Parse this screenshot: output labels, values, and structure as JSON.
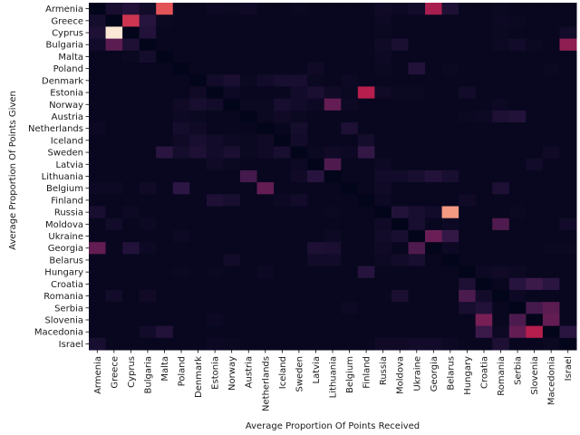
{
  "chart_data": {
    "type": "heatmap",
    "xlabel": "Average Proportion Of Points Received",
    "ylabel": "Average Proportion Of Points Given",
    "colorscale": [
      "#03051a",
      "#2e1745",
      "#701f57",
      "#be1e4c",
      "#f1695d",
      "#f7c8a6",
      "#faebdd"
    ],
    "scale_max": 1.0,
    "countries": [
      "Armenia",
      "Greece",
      "Cyprus",
      "Bulgaria",
      "Malta",
      "Poland",
      "Denmark",
      "Estonia",
      "Norway",
      "Austria",
      "Netherlands",
      "Iceland",
      "Sweden",
      "Latvia",
      "Lithuania",
      "Belgium",
      "Finland",
      "Russia",
      "Moldova",
      "Ukraine",
      "Georgia",
      "Belarus",
      "Hungary",
      "Croatia",
      "Romania",
      "Serbia",
      "Slovenia",
      "Macedonia",
      "Israel"
    ],
    "values": [
      [
        0.0,
        0.08,
        0.12,
        0.06,
        0.62,
        0.02,
        0.02,
        0.04,
        0.03,
        0.05,
        0.02,
        0.02,
        0.03,
        0.02,
        0.02,
        0.02,
        0.02,
        0.05,
        0.04,
        0.06,
        0.45,
        0.1,
        0.02,
        0.02,
        0.03,
        0.02,
        0.02,
        0.02,
        0.02
      ],
      [
        0.07,
        0.0,
        0.55,
        0.14,
        0.03,
        0.02,
        0.02,
        0.02,
        0.02,
        0.02,
        0.02,
        0.02,
        0.02,
        0.02,
        0.02,
        0.02,
        0.02,
        0.04,
        0.02,
        0.02,
        0.02,
        0.02,
        0.02,
        0.02,
        0.04,
        0.03,
        0.02,
        0.02,
        0.02
      ],
      [
        0.1,
        0.98,
        0.0,
        0.12,
        0.02,
        0.02,
        0.02,
        0.02,
        0.02,
        0.02,
        0.02,
        0.02,
        0.02,
        0.02,
        0.02,
        0.02,
        0.02,
        0.03,
        0.02,
        0.02,
        0.02,
        0.02,
        0.02,
        0.02,
        0.03,
        0.02,
        0.02,
        0.02,
        0.06
      ],
      [
        0.06,
        0.28,
        0.1,
        0.0,
        0.02,
        0.02,
        0.02,
        0.02,
        0.02,
        0.02,
        0.02,
        0.02,
        0.02,
        0.02,
        0.02,
        0.02,
        0.02,
        0.05,
        0.09,
        0.02,
        0.02,
        0.02,
        0.02,
        0.02,
        0.04,
        0.06,
        0.03,
        0.02,
        0.4
      ],
      [
        0.02,
        0.02,
        0.03,
        0.07,
        0.0,
        0.02,
        0.02,
        0.02,
        0.02,
        0.02,
        0.02,
        0.02,
        0.02,
        0.02,
        0.02,
        0.02,
        0.02,
        0.04,
        0.02,
        0.02,
        0.02,
        0.02,
        0.02,
        0.02,
        0.02,
        0.02,
        0.02,
        0.02,
        0.02
      ],
      [
        0.02,
        0.02,
        0.02,
        0.02,
        0.02,
        0.0,
        0.02,
        0.02,
        0.02,
        0.02,
        0.02,
        0.02,
        0.02,
        0.05,
        0.02,
        0.02,
        0.02,
        0.03,
        0.02,
        0.12,
        0.02,
        0.03,
        0.02,
        0.02,
        0.02,
        0.02,
        0.02,
        0.03,
        0.02
      ],
      [
        0.02,
        0.02,
        0.02,
        0.02,
        0.02,
        0.02,
        0.0,
        0.06,
        0.09,
        0.03,
        0.06,
        0.08,
        0.08,
        0.03,
        0.02,
        0.04,
        0.02,
        0.02,
        0.02,
        0.02,
        0.02,
        0.02,
        0.02,
        0.02,
        0.02,
        0.02,
        0.02,
        0.02,
        0.02
      ],
      [
        0.02,
        0.02,
        0.02,
        0.02,
        0.02,
        0.02,
        0.05,
        0.0,
        0.04,
        0.02,
        0.02,
        0.02,
        0.06,
        0.09,
        0.05,
        0.03,
        0.48,
        0.05,
        0.03,
        0.03,
        0.02,
        0.02,
        0.06,
        0.02,
        0.02,
        0.02,
        0.02,
        0.02,
        0.02
      ],
      [
        0.02,
        0.02,
        0.02,
        0.02,
        0.02,
        0.05,
        0.08,
        0.06,
        0.0,
        0.03,
        0.03,
        0.08,
        0.06,
        0.04,
        0.3,
        0.04,
        0.02,
        0.02,
        0.02,
        0.02,
        0.02,
        0.02,
        0.02,
        0.02,
        0.04,
        0.02,
        0.02,
        0.02,
        0.02
      ],
      [
        0.02,
        0.02,
        0.02,
        0.02,
        0.02,
        0.04,
        0.03,
        0.02,
        0.02,
        0.0,
        0.03,
        0.05,
        0.03,
        0.02,
        0.02,
        0.02,
        0.02,
        0.02,
        0.02,
        0.02,
        0.02,
        0.02,
        0.03,
        0.04,
        0.1,
        0.12,
        0.02,
        0.02,
        0.02
      ],
      [
        0.04,
        0.02,
        0.02,
        0.02,
        0.02,
        0.07,
        0.05,
        0.02,
        0.02,
        0.02,
        0.0,
        0.02,
        0.07,
        0.02,
        0.02,
        0.1,
        0.02,
        0.02,
        0.02,
        0.02,
        0.02,
        0.02,
        0.02,
        0.02,
        0.02,
        0.02,
        0.02,
        0.02,
        0.02
      ],
      [
        0.02,
        0.02,
        0.02,
        0.02,
        0.02,
        0.05,
        0.08,
        0.06,
        0.04,
        0.03,
        0.05,
        0.0,
        0.06,
        0.02,
        0.02,
        0.02,
        0.07,
        0.02,
        0.02,
        0.02,
        0.02,
        0.02,
        0.02,
        0.02,
        0.02,
        0.02,
        0.02,
        0.02,
        0.02
      ],
      [
        0.02,
        0.02,
        0.02,
        0.02,
        0.15,
        0.07,
        0.1,
        0.06,
        0.09,
        0.03,
        0.05,
        0.08,
        0.0,
        0.03,
        0.05,
        0.04,
        0.18,
        0.02,
        0.02,
        0.02,
        0.02,
        0.02,
        0.02,
        0.02,
        0.02,
        0.02,
        0.02,
        0.05,
        0.02
      ],
      [
        0.02,
        0.02,
        0.02,
        0.02,
        0.02,
        0.02,
        0.02,
        0.05,
        0.03,
        0.02,
        0.02,
        0.02,
        0.04,
        0.0,
        0.25,
        0.02,
        0.02,
        0.04,
        0.02,
        0.02,
        0.02,
        0.02,
        0.02,
        0.02,
        0.02,
        0.02,
        0.06,
        0.02,
        0.02
      ],
      [
        0.02,
        0.02,
        0.02,
        0.02,
        0.02,
        0.02,
        0.02,
        0.02,
        0.02,
        0.22,
        0.02,
        0.02,
        0.05,
        0.14,
        0.0,
        0.02,
        0.02,
        0.06,
        0.06,
        0.08,
        0.12,
        0.08,
        0.02,
        0.02,
        0.02,
        0.02,
        0.02,
        0.02,
        0.02
      ],
      [
        0.04,
        0.04,
        0.02,
        0.05,
        0.02,
        0.16,
        0.02,
        0.02,
        0.02,
        0.02,
        0.3,
        0.02,
        0.02,
        0.02,
        0.02,
        0.0,
        0.02,
        0.05,
        0.02,
        0.02,
        0.02,
        0.02,
        0.02,
        0.02,
        0.1,
        0.02,
        0.02,
        0.02,
        0.02
      ],
      [
        0.02,
        0.02,
        0.02,
        0.02,
        0.02,
        0.02,
        0.02,
        0.1,
        0.08,
        0.02,
        0.02,
        0.04,
        0.06,
        0.02,
        0.02,
        0.02,
        0.0,
        0.04,
        0.02,
        0.02,
        0.02,
        0.02,
        0.05,
        0.02,
        0.02,
        0.02,
        0.02,
        0.02,
        0.02
      ],
      [
        0.08,
        0.02,
        0.04,
        0.02,
        0.02,
        0.02,
        0.02,
        0.02,
        0.02,
        0.02,
        0.02,
        0.02,
        0.02,
        0.02,
        0.03,
        0.02,
        0.02,
        0.0,
        0.12,
        0.08,
        0.06,
        0.75,
        0.02,
        0.02,
        0.02,
        0.03,
        0.02,
        0.02,
        0.02
      ],
      [
        0.02,
        0.06,
        0.02,
        0.04,
        0.02,
        0.02,
        0.02,
        0.02,
        0.02,
        0.02,
        0.02,
        0.02,
        0.02,
        0.02,
        0.02,
        0.02,
        0.02,
        0.05,
        0.0,
        0.08,
        0.02,
        0.04,
        0.02,
        0.02,
        0.25,
        0.02,
        0.02,
        0.02,
        0.06
      ],
      [
        0.02,
        0.02,
        0.02,
        0.02,
        0.02,
        0.04,
        0.02,
        0.02,
        0.02,
        0.02,
        0.02,
        0.02,
        0.02,
        0.02,
        0.04,
        0.02,
        0.02,
        0.06,
        0.08,
        0.0,
        0.32,
        0.18,
        0.02,
        0.02,
        0.02,
        0.02,
        0.02,
        0.02,
        0.02
      ],
      [
        0.3,
        0.02,
        0.12,
        0.04,
        0.02,
        0.02,
        0.02,
        0.02,
        0.02,
        0.02,
        0.02,
        0.02,
        0.02,
        0.1,
        0.09,
        0.02,
        0.02,
        0.05,
        0.02,
        0.25,
        0.0,
        0.04,
        0.02,
        0.02,
        0.02,
        0.02,
        0.02,
        0.03,
        0.03
      ],
      [
        0.02,
        0.02,
        0.02,
        0.02,
        0.02,
        0.02,
        0.02,
        0.02,
        0.06,
        0.02,
        0.02,
        0.02,
        0.02,
        0.06,
        0.06,
        0.02,
        0.02,
        0.04,
        0.06,
        0.08,
        0.02,
        0.0,
        0.02,
        0.02,
        0.02,
        0.02,
        0.02,
        0.02,
        0.02
      ],
      [
        0.02,
        0.02,
        0.02,
        0.02,
        0.02,
        0.03,
        0.02,
        0.03,
        0.02,
        0.02,
        0.04,
        0.02,
        0.02,
        0.02,
        0.02,
        0.02,
        0.14,
        0.02,
        0.02,
        0.02,
        0.02,
        0.02,
        0.0,
        0.04,
        0.05,
        0.04,
        0.02,
        0.02,
        0.02
      ],
      [
        0.02,
        0.02,
        0.02,
        0.02,
        0.02,
        0.02,
        0.02,
        0.02,
        0.02,
        0.02,
        0.02,
        0.02,
        0.02,
        0.02,
        0.02,
        0.02,
        0.02,
        0.02,
        0.02,
        0.02,
        0.02,
        0.02,
        0.1,
        0.0,
        0.02,
        0.14,
        0.2,
        0.15,
        0.02
      ],
      [
        0.02,
        0.06,
        0.02,
        0.05,
        0.02,
        0.02,
        0.02,
        0.02,
        0.02,
        0.02,
        0.02,
        0.02,
        0.02,
        0.02,
        0.02,
        0.02,
        0.02,
        0.02,
        0.09,
        0.02,
        0.02,
        0.02,
        0.24,
        0.06,
        0.0,
        0.04,
        0.02,
        0.02,
        0.02
      ],
      [
        0.02,
        0.02,
        0.02,
        0.02,
        0.02,
        0.02,
        0.02,
        0.02,
        0.02,
        0.02,
        0.02,
        0.02,
        0.02,
        0.02,
        0.02,
        0.04,
        0.02,
        0.02,
        0.02,
        0.02,
        0.02,
        0.02,
        0.08,
        0.12,
        0.02,
        0.0,
        0.22,
        0.28,
        0.02
      ],
      [
        0.02,
        0.02,
        0.02,
        0.02,
        0.02,
        0.02,
        0.02,
        0.04,
        0.02,
        0.02,
        0.02,
        0.02,
        0.02,
        0.02,
        0.02,
        0.02,
        0.02,
        0.02,
        0.02,
        0.02,
        0.02,
        0.02,
        0.02,
        0.35,
        0.02,
        0.24,
        0.0,
        0.3,
        0.02
      ],
      [
        0.02,
        0.02,
        0.02,
        0.06,
        0.12,
        0.02,
        0.02,
        0.02,
        0.02,
        0.02,
        0.02,
        0.02,
        0.02,
        0.02,
        0.02,
        0.02,
        0.02,
        0.02,
        0.02,
        0.02,
        0.02,
        0.02,
        0.02,
        0.2,
        0.04,
        0.3,
        0.48,
        0.0,
        0.15
      ],
      [
        0.08,
        0.02,
        0.02,
        0.02,
        0.02,
        0.02,
        0.02,
        0.04,
        0.03,
        0.02,
        0.02,
        0.02,
        0.02,
        0.02,
        0.02,
        0.02,
        0.02,
        0.05,
        0.05,
        0.06,
        0.06,
        0.04,
        0.02,
        0.02,
        0.1,
        0.02,
        0.02,
        0.03,
        0.0
      ]
    ]
  }
}
